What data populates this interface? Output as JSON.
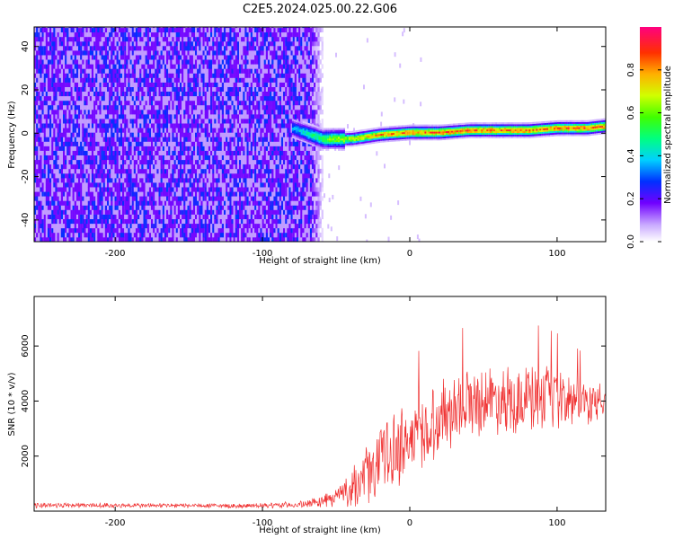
{
  "title": "C2E5.2024.025.00.22.G06",
  "chart_data": [
    {
      "type": "heatmap",
      "xlabel": "Height of straight line (km)",
      "ylabel": "Frequency (Hz)",
      "xlim": [
        -255,
        133
      ],
      "ylim": [
        -50,
        49
      ],
      "x_ticks": [
        -200,
        -100,
        0,
        100
      ],
      "y_ticks": [
        -40,
        -20,
        0,
        20,
        40
      ],
      "colorbar": {
        "label": "Normalized spectral amplitude",
        "range": [
          0,
          1
        ],
        "ticks": [
          "0.0",
          "0.2",
          "0.4",
          "0.6",
          "0.8"
        ],
        "tick_values": [
          0,
          0.2,
          0.4,
          0.6,
          0.8
        ]
      },
      "noise_region": {
        "x_range": [
          -255,
          -62
        ],
        "dominant_level": 0.25
      },
      "signal_ridge": {
        "x": [
          -80,
          -60,
          -40,
          -20,
          0,
          20,
          40,
          60,
          80,
          100,
          120,
          133
        ],
        "frequency": [
          2,
          -3,
          -3,
          -1,
          0,
          0,
          1,
          1,
          1,
          2,
          2,
          3
        ],
        "amplitude": [
          0.35,
          0.55,
          0.7,
          0.8,
          0.85,
          0.85,
          0.85,
          0.85,
          0.85,
          0.85,
          0.85,
          0.85
        ]
      }
    },
    {
      "type": "line",
      "xlabel": "Height of straight line (km)",
      "ylabel": "SNR (10 * v/v)",
      "xlim": [
        -255,
        133
      ],
      "ylim": [
        0,
        7800
      ],
      "x_ticks": [
        -200,
        -100,
        0,
        100
      ],
      "y_ticks": [
        2000,
        4000,
        6000
      ],
      "color": "#f03232",
      "series_envelope": {
        "x": [
          -255,
          -200,
          -150,
          -100,
          -70,
          -55,
          -40,
          -30,
          -20,
          -10,
          0,
          10,
          20,
          30,
          40,
          60,
          80,
          100,
          120,
          133
        ],
        "mean": [
          220,
          210,
          200,
          190,
          250,
          420,
          800,
          1300,
          1900,
          2300,
          2600,
          2900,
          3400,
          3800,
          4000,
          4100,
          4050,
          4000,
          3950,
          3900
        ],
        "spread": [
          120,
          100,
          100,
          100,
          150,
          300,
          700,
          1200,
          1500,
          1600,
          1600,
          1600,
          1500,
          1500,
          1400,
          1400,
          1500,
          1300,
          900,
          700
        ]
      }
    }
  ]
}
